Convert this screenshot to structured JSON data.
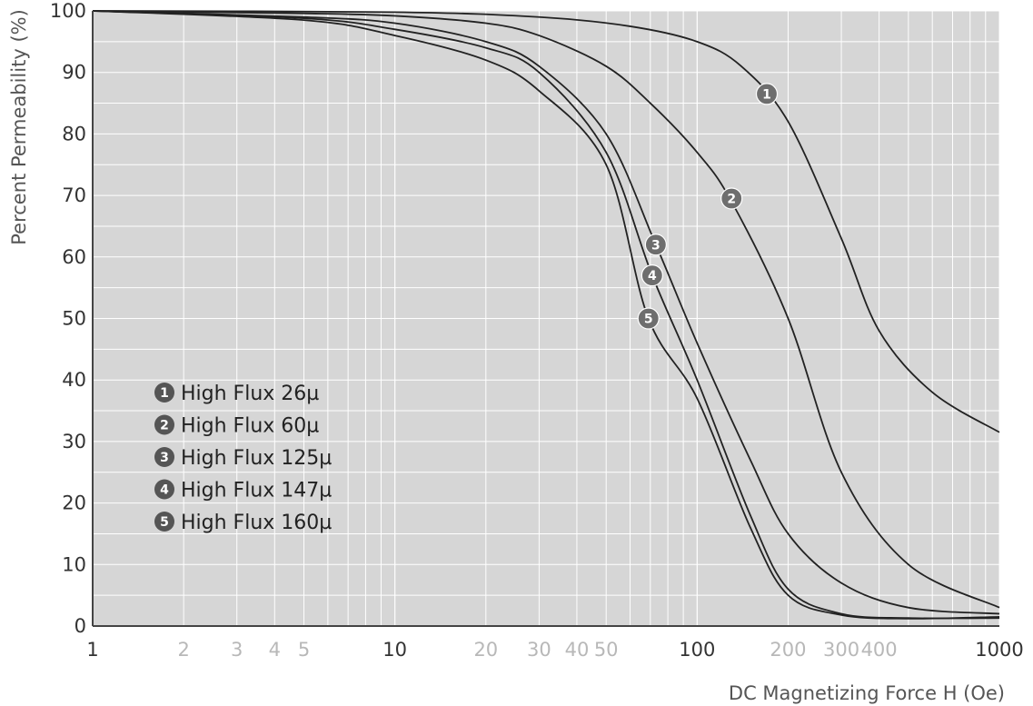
{
  "chart_data": {
    "type": "line",
    "xscale": "log",
    "xlabel": "DC Magnetizing Force H (Oe)",
    "ylabel": "Percent Permeability (%)",
    "xlim": [
      1,
      1000
    ],
    "ylim": [
      0,
      100
    ],
    "grid": true,
    "y_ticks": [
      "0",
      "10",
      "20",
      "30",
      "40",
      "50",
      "60",
      "70",
      "80",
      "90",
      "100"
    ],
    "x_ticks": [
      {
        "value": 1,
        "label": "1",
        "major": true
      },
      {
        "value": 2,
        "label": "2",
        "major": false
      },
      {
        "value": 3,
        "label": "3",
        "major": false
      },
      {
        "value": 4,
        "label": "4",
        "major": false
      },
      {
        "value": 5,
        "label": "5",
        "major": false
      },
      {
        "value": 10,
        "label": "10",
        "major": true
      },
      {
        "value": 20,
        "label": "20",
        "major": false
      },
      {
        "value": 30,
        "label": "30",
        "major": false
      },
      {
        "value": 40,
        "label": "40",
        "major": false
      },
      {
        "value": 50,
        "label": "50",
        "major": false
      },
      {
        "value": 100,
        "label": "100",
        "major": true
      },
      {
        "value": 200,
        "label": "200",
        "major": false
      },
      {
        "value": 300,
        "label": "300",
        "major": false
      },
      {
        "value": 400,
        "label": "400",
        "major": false
      },
      {
        "value": 1000,
        "label": "1000",
        "major": true
      }
    ],
    "legend_placement": "lower-left",
    "series": [
      {
        "name": "High Flux 26µ",
        "marker_label": "1",
        "marker_x": 170,
        "marker_y": 86.5,
        "x": [
          1,
          10,
          30,
          60,
          100,
          140,
          200,
          300,
          400,
          600,
          1000
        ],
        "y": [
          100,
          99.8,
          99,
          97.5,
          95,
          91,
          82,
          63,
          48,
          38,
          31.5
        ]
      },
      {
        "name": "High Flux 60µ",
        "marker_label": "2",
        "marker_x": 130,
        "marker_y": 69.5,
        "x": [
          1,
          5,
          10,
          20,
          30,
          50,
          70,
          100,
          130,
          200,
          300,
          500,
          1000
        ],
        "y": [
          100,
          99.6,
          99.2,
          98,
          96,
          91,
          85,
          77,
          69,
          50,
          25,
          10,
          3
        ]
      },
      {
        "name": "High Flux 125µ",
        "marker_label": "3",
        "marker_x": 73,
        "marker_y": 62,
        "x": [
          1,
          5,
          10,
          20,
          30,
          50,
          73,
          100,
          150,
          200,
          300,
          500,
          1000
        ],
        "y": [
          100,
          99,
          98,
          95,
          91,
          80,
          62,
          46,
          27,
          15,
          7,
          3,
          2
        ]
      },
      {
        "name": "High Flux 147µ",
        "marker_label": "4",
        "marker_x": 71,
        "marker_y": 57,
        "x": [
          1,
          5,
          10,
          20,
          30,
          50,
          71,
          100,
          150,
          200,
          300,
          500,
          1000
        ],
        "y": [
          100,
          98.8,
          97,
          94,
          90,
          77,
          57,
          40,
          18,
          6,
          2,
          1.3,
          1.3
        ]
      },
      {
        "name": "High Flux 160µ",
        "marker_label": "5",
        "marker_x": 69,
        "marker_y": 50,
        "x": [
          1,
          5,
          10,
          20,
          30,
          50,
          69,
          100,
          150,
          200,
          300,
          500,
          1000
        ],
        "y": [
          100,
          98.5,
          96,
          92,
          87,
          75,
          50,
          37,
          16,
          5,
          1.8,
          1.2,
          1.5
        ]
      }
    ]
  }
}
